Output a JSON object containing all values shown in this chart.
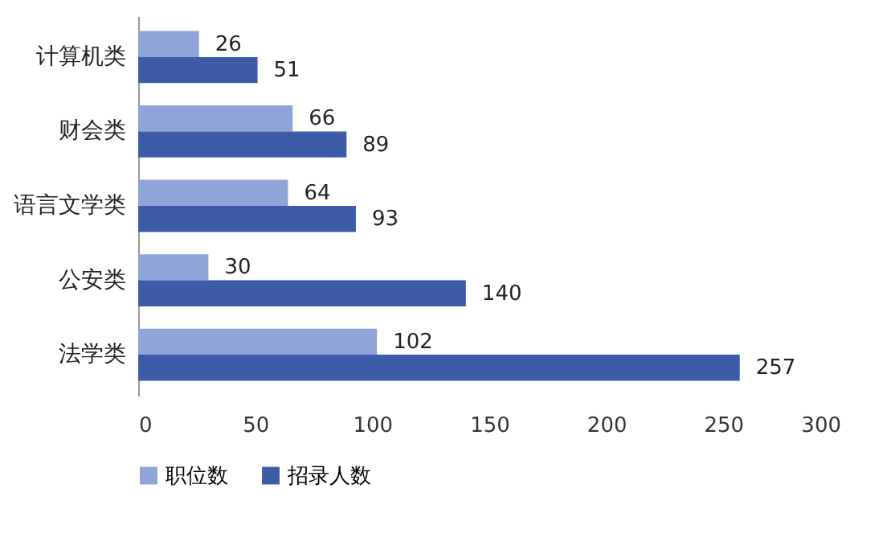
{
  "chart_data": {
    "type": "bar",
    "orientation": "horizontal",
    "categories": [
      "计算机类",
      "财会类",
      "语言文学类",
      "公安类",
      "法学类"
    ],
    "series": [
      {
        "name": "职位数",
        "color": "#8fa5d8",
        "values": [
          26,
          66,
          64,
          30,
          102
        ]
      },
      {
        "name": "招录人数",
        "color": "#3d5ca8",
        "values": [
          51,
          89,
          93,
          140,
          257
        ]
      }
    ],
    "xlim": [
      0,
      300
    ],
    "xticks": [
      0,
      50,
      100,
      150,
      200,
      250,
      300
    ],
    "data_labels": true,
    "legend": "bottom"
  }
}
